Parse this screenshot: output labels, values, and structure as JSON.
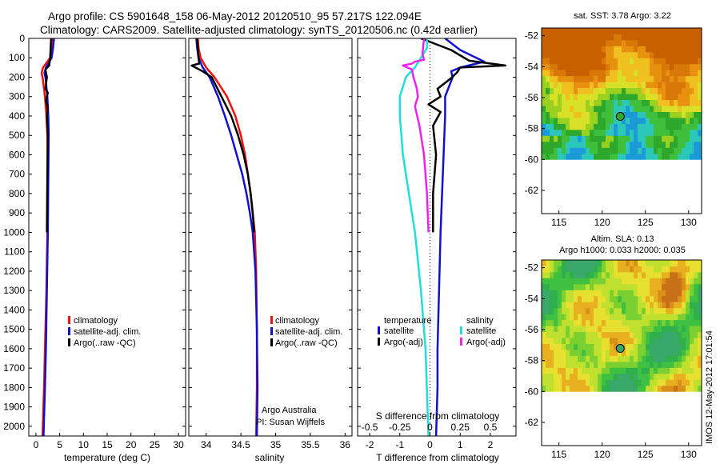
{
  "header": {
    "title_line1": "Argo profile: CS 5901648_158 06-May-2012 20120510_95 57.217S 122.094E",
    "title_line2": "Climatology: CARS2009. Satellite-adjusted climatology: synTS_20120506.nc (0.42d earlier)"
  },
  "colors": {
    "climatology": "#ee1111",
    "satellite_adj": "#1111cc",
    "argo": "#000000",
    "sat_salinity": "#22dddd",
    "argo_adj_salinity": "#ee22ee"
  },
  "chart_data": [
    {
      "type": "line",
      "name": "temperature-profile",
      "xlabel": "temperature (deg C)",
      "ylabel": "",
      "xlim": [
        -1.5,
        31.5
      ],
      "ylim": [
        0,
        2050
      ],
      "y_inverted": true,
      "xticks": [
        0,
        5,
        10,
        15,
        20,
        25,
        30
      ],
      "yticks": [
        0,
        100,
        200,
        300,
        400,
        500,
        600,
        700,
        800,
        900,
        1000,
        1100,
        1200,
        1300,
        1400,
        1500,
        1600,
        1700,
        1800,
        1900,
        2000
      ],
      "legend": {
        "placement": "lower-center",
        "entries": [
          "climatology",
          "satellite-adj. clim.",
          "Argo(..raw -QC)"
        ]
      },
      "series": [
        {
          "name": "climatology",
          "color_key": "climatology",
          "points": [
            [
              3.5,
              0
            ],
            [
              3.3,
              50
            ],
            [
              3.0,
              100
            ],
            [
              1.5,
              150
            ],
            [
              1.2,
              180
            ],
            [
              1.4,
              200
            ],
            [
              1.9,
              300
            ],
            [
              2.2,
              400
            ],
            [
              2.4,
              500
            ],
            [
              2.5,
              700
            ],
            [
              2.4,
              1000
            ],
            [
              2.2,
              1300
            ],
            [
              1.9,
              1600
            ],
            [
              1.7,
              1800
            ],
            [
              1.4,
              2050
            ]
          ]
        },
        {
          "name": "satellite-adj. clim.",
          "color_key": "satellite_adj",
          "points": [
            [
              3.8,
              0
            ],
            [
              3.6,
              50
            ],
            [
              3.3,
              100
            ],
            [
              2.1,
              150
            ],
            [
              1.8,
              180
            ],
            [
              2.0,
              200
            ],
            [
              2.4,
              300
            ],
            [
              2.6,
              400
            ],
            [
              2.7,
              500
            ],
            [
              2.6,
              700
            ],
            [
              2.5,
              1000
            ],
            [
              2.3,
              1300
            ],
            [
              2.1,
              1600
            ],
            [
              1.9,
              1800
            ],
            [
              1.6,
              2050
            ]
          ]
        },
        {
          "name": "Argo(..raw -QC)",
          "color_key": "argo",
          "points": [
            [
              3.2,
              0
            ],
            [
              3.1,
              50
            ],
            [
              3.0,
              100
            ],
            [
              2.8,
              140
            ],
            [
              2.0,
              160
            ],
            [
              2.3,
              200
            ],
            [
              2.0,
              260
            ],
            [
              2.5,
              280
            ],
            [
              2.1,
              320
            ],
            [
              2.5,
              360
            ],
            [
              2.3,
              400
            ],
            [
              2.5,
              500
            ],
            [
              2.4,
              700
            ],
            [
              2.3,
              1000
            ]
          ]
        }
      ]
    },
    {
      "type": "line",
      "name": "salinity-profile",
      "xlabel": "salinity",
      "ylabel": "",
      "xlim": [
        33.75,
        36.1
      ],
      "ylim": [
        0,
        2050
      ],
      "y_inverted": true,
      "xticks": [
        34,
        34.5,
        35,
        35.5,
        36
      ],
      "xtick_labels": [
        "34",
        "34.5",
        "35",
        "35.5",
        "36"
      ],
      "legend": {
        "placement": "lower-right",
        "entries": [
          "climatology",
          "satellite-adj. clim.",
          "Argo(..raw -QC)"
        ]
      },
      "annotation": [
        "Argo Australia",
        "PI: Susan Wijffels"
      ],
      "series": [
        {
          "name": "climatology",
          "color_key": "climatology",
          "points": [
            [
              33.88,
              0
            ],
            [
              33.89,
              50
            ],
            [
              33.92,
              100
            ],
            [
              34.0,
              150
            ],
            [
              34.12,
              200
            ],
            [
              34.3,
              300
            ],
            [
              34.42,
              400
            ],
            [
              34.5,
              500
            ],
            [
              34.56,
              600
            ],
            [
              34.6,
              700
            ],
            [
              34.64,
              800
            ],
            [
              34.67,
              900
            ],
            [
              34.7,
              1000
            ],
            [
              34.72,
              1200
            ],
            [
              34.73,
              1500
            ],
            [
              34.73,
              1800
            ],
            [
              34.72,
              2050
            ]
          ]
        },
        {
          "name": "satellite-adj. clim.",
          "color_key": "satellite_adj",
          "points": [
            [
              33.86,
              0
            ],
            [
              33.87,
              50
            ],
            [
              33.89,
              100
            ],
            [
              33.95,
              150
            ],
            [
              34.05,
              200
            ],
            [
              34.17,
              300
            ],
            [
              34.27,
              400
            ],
            [
              34.36,
              500
            ],
            [
              34.44,
              600
            ],
            [
              34.52,
              700
            ],
            [
              34.58,
              800
            ],
            [
              34.63,
              900
            ],
            [
              34.67,
              1000
            ],
            [
              34.71,
              1200
            ],
            [
              34.73,
              1500
            ],
            [
              34.74,
              1800
            ],
            [
              34.73,
              2050
            ]
          ]
        },
        {
          "name": "Argo(..raw -QC)",
          "color_key": "argo",
          "points": [
            [
              33.87,
              0
            ],
            [
              33.88,
              50
            ],
            [
              33.89,
              100
            ],
            [
              33.9,
              130
            ],
            [
              33.79,
              140
            ],
            [
              33.95,
              170
            ],
            [
              34.08,
              200
            ],
            [
              34.22,
              300
            ],
            [
              34.36,
              400
            ],
            [
              34.46,
              500
            ],
            [
              34.54,
              600
            ],
            [
              34.6,
              700
            ],
            [
              34.64,
              800
            ],
            [
              34.67,
              900
            ],
            [
              34.69,
              1000
            ]
          ]
        }
      ]
    },
    {
      "type": "line",
      "name": "difference-from-climatology",
      "xlabel": "T difference from climatology",
      "xlabel_top": "S difference from climatology",
      "xlim": [
        -2.4,
        2.85
      ],
      "ylim": [
        0,
        2050
      ],
      "y_inverted": true,
      "xticks": [
        -2,
        -1,
        0,
        1,
        2
      ],
      "xticks_s": [
        -0.5,
        -0.25,
        0,
        0.25,
        0.5
      ],
      "legend": {
        "placement": "lower",
        "groups": [
          {
            "heading": "temperature",
            "entries": [
              "satellite",
              "Argo(-adj)"
            ]
          },
          {
            "heading": "salinity",
            "entries": [
              "satellite",
              "Argo(-adj)"
            ]
          }
        ]
      },
      "series": [
        {
          "name": "temperature satellite",
          "color_key": "satellite_adj",
          "points": [
            [
              0.5,
              0
            ],
            [
              1.0,
              60
            ],
            [
              1.8,
              120
            ],
            [
              1.0,
              150
            ],
            [
              0.7,
              170
            ],
            [
              0.75,
              200
            ],
            [
              0.5,
              300
            ],
            [
              0.5,
              400
            ],
            [
              0.45,
              600
            ],
            [
              0.4,
              800
            ],
            [
              0.35,
              1000
            ],
            [
              0.3,
              1300
            ],
            [
              0.25,
              1600
            ],
            [
              0.25,
              1800
            ],
            [
              0.2,
              2050
            ]
          ]
        },
        {
          "name": "temperature Argo(-adj)",
          "color_key": "argo",
          "points": [
            [
              -0.3,
              0
            ],
            [
              0.7,
              60
            ],
            [
              1.3,
              115
            ],
            [
              2.5,
              140
            ],
            [
              1.0,
              150
            ],
            [
              0.9,
              175
            ],
            [
              0.7,
              205
            ],
            [
              0.25,
              260
            ],
            [
              0.35,
              300
            ],
            [
              -0.05,
              340
            ],
            [
              0.35,
              380
            ],
            [
              0.1,
              450
            ],
            [
              0.2,
              600
            ],
            [
              0.1,
              800
            ],
            [
              0.1,
              1000
            ]
          ]
        },
        {
          "name": "salinity satellite",
          "color_key": "sat_salinity",
          "points": [
            [
              -0.1,
              0
            ],
            [
              -0.1,
              50
            ],
            [
              -0.3,
              100
            ],
            [
              -0.5,
              150
            ],
            [
              -0.8,
              200
            ],
            [
              -1.0,
              300
            ],
            [
              -1.0,
              400
            ],
            [
              -0.9,
              600
            ],
            [
              -0.7,
              800
            ],
            [
              -0.5,
              1000
            ],
            [
              -0.3,
              1300
            ],
            [
              -0.15,
              1600
            ],
            [
              -0.05,
              2050
            ]
          ]
        },
        {
          "name": "salinity Argo(-adj)",
          "color_key": "argo_adj_salinity",
          "points": [
            [
              -0.2,
              0
            ],
            [
              -0.25,
              80
            ],
            [
              -0.2,
              110
            ],
            [
              -0.5,
              120
            ],
            [
              -0.6,
              130
            ],
            [
              -0.9,
              140
            ],
            [
              -0.6,
              160
            ],
            [
              -0.55,
              200
            ],
            [
              -0.45,
              250
            ],
            [
              -0.4,
              300
            ],
            [
              -0.5,
              350
            ],
            [
              -0.35,
              450
            ],
            [
              -0.2,
              600
            ],
            [
              -0.1,
              800
            ],
            [
              -0.05,
              1000
            ]
          ]
        }
      ]
    },
    {
      "type": "heatmap",
      "name": "sst-map",
      "title": "sat. SST: 3.78 Argo: 3.22",
      "xlim": [
        113,
        131.5
      ],
      "ylim": [
        -63.5,
        -51.5
      ],
      "xticks": [
        115,
        120,
        125,
        130
      ],
      "yticks": [
        -52,
        -54,
        -56,
        -58,
        -60,
        -62
      ],
      "data_extent_lat": [
        -60,
        -51.5
      ],
      "marker": {
        "lon": 122.094,
        "lat": -57.217
      },
      "palette": [
        "#1c9ad8",
        "#2ac7ba",
        "#3fbf3c",
        "#2ea82c",
        "#9ad020",
        "#d8e028",
        "#f0c020",
        "#e89010",
        "#d87808",
        "#c86000"
      ]
    },
    {
      "type": "heatmap",
      "name": "sla-map",
      "title_line1": "Altim. SLA: 0.13",
      "title_line2": "Argo h1000: 0.033 h2000: 0.035",
      "xlim": [
        113,
        131.5
      ],
      "ylim": [
        -63.5,
        -51.5
      ],
      "xticks": [
        115,
        120,
        125,
        130
      ],
      "yticks": [
        -52,
        -54,
        -56,
        -58,
        -60,
        -62
      ],
      "data_extent_lat": [
        -60,
        -51.5
      ],
      "marker": {
        "lon": 122.094,
        "lat": -57.217
      },
      "palette": [
        "#3aa86a",
        "#2fb04c",
        "#40c040",
        "#7ad030",
        "#c0e030",
        "#e8e030",
        "#e8b020",
        "#d89018",
        "#c87018"
      ]
    }
  ],
  "footer": {
    "stamp": "IMOS 12-May-2012 17:01:54"
  }
}
